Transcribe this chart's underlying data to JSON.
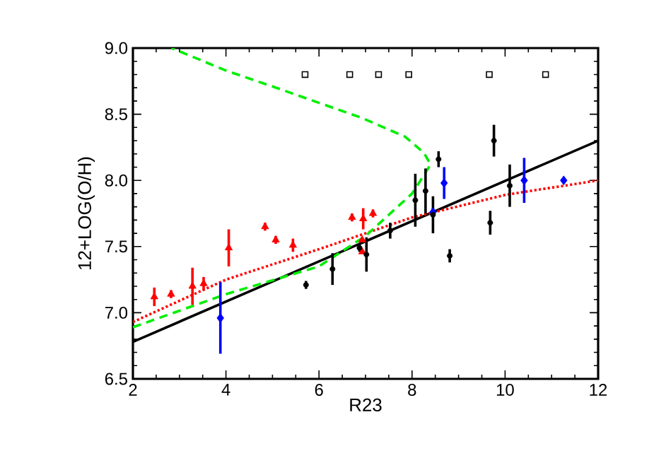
{
  "chart_data": {
    "type": "scatter",
    "xlabel": "R23",
    "ylabel": "12+LOG(O/H)",
    "xlim": [
      2,
      12
    ],
    "ylim": [
      6.5,
      9.0
    ],
    "xticks": [
      2,
      4,
      6,
      8,
      10,
      12
    ],
    "yticks": [
      {
        "value": 6.5,
        "label": "6.5"
      },
      {
        "value": 7.0,
        "label": "7.0"
      },
      {
        "value": 7.5,
        "label": "7.5"
      },
      {
        "value": 8.0,
        "label": "8.0"
      },
      {
        "value": 8.5,
        "label": "8.5"
      },
      {
        "value": 9.0,
        "label": "9.0"
      }
    ],
    "grid": false,
    "series": [
      {
        "type": "line",
        "color": "#000000",
        "line_style": "solid",
        "marker": "none",
        "x": [
          2,
          12
        ],
        "values": [
          6.78,
          8.3
        ]
      },
      {
        "type": "line",
        "color": "#ff0000",
        "line_style": "dotted",
        "marker": "none",
        "x": [
          2,
          4,
          6,
          8,
          10,
          12
        ],
        "values": [
          6.93,
          7.25,
          7.48,
          7.72,
          7.89,
          8.0
        ]
      },
      {
        "type": "line",
        "color": "#00ee00",
        "line_style": "dashed",
        "marker": "none",
        "x": [
          2,
          4,
          6,
          7,
          8,
          8.4,
          8.25,
          7.85,
          6.94,
          5.0,
          4.0,
          2.83
        ],
        "values": [
          6.89,
          7.14,
          7.35,
          7.58,
          7.9,
          8.12,
          8.21,
          8.33,
          8.47,
          8.71,
          8.83,
          9.0
        ]
      },
      {
        "color": "#ff0000",
        "marker": "triangle",
        "x": [
          2.46,
          2.82,
          3.28,
          3.52,
          4.06,
          4.84,
          5.07,
          5.44,
          6.71,
          6.95,
          7.16,
          6.93,
          6.93
        ],
        "values": [
          7.12,
          7.14,
          7.2,
          7.22,
          7.49,
          7.65,
          7.55,
          7.51,
          7.72,
          7.71,
          7.75,
          7.55,
          7.46
        ],
        "errors": [
          0.07,
          0.03,
          0.14,
          0.05,
          0.14,
          0.03,
          0.03,
          0.05,
          0.03,
          0.08,
          0.03,
          null,
          null
        ]
      },
      {
        "color": "#0000ff",
        "marker": "diamond",
        "x": [
          3.88,
          8.45,
          8.69,
          10.41,
          11.26
        ],
        "values": [
          6.96,
          7.76,
          7.98,
          8.0,
          8.0
        ],
        "errors": [
          0.27,
          0.03,
          0.12,
          0.17,
          0.0
        ]
      },
      {
        "color": "#000000",
        "marker": "circle",
        "x": [
          5.72,
          6.29,
          6.87,
          7.02,
          7.53,
          8.07,
          8.29,
          8.45,
          8.57,
          8.81,
          9.68,
          9.76,
          10.1
        ],
        "values": [
          7.21,
          7.33,
          7.49,
          7.44,
          7.62,
          7.85,
          7.92,
          7.74,
          8.16,
          7.43,
          7.68,
          8.3,
          7.96
        ],
        "errors": [
          0.03,
          0.12,
          0.03,
          0.13,
          0.06,
          0.2,
          0.17,
          0.14,
          0.06,
          0.05,
          0.09,
          0.12,
          0.16
        ]
      },
      {
        "color": "#000000",
        "marker": "square",
        "x": [
          5.7,
          6.66,
          7.28,
          7.93,
          9.66,
          10.87
        ],
        "values": [
          8.8,
          8.8,
          8.8,
          8.8,
          8.8,
          8.8
        ]
      }
    ]
  }
}
